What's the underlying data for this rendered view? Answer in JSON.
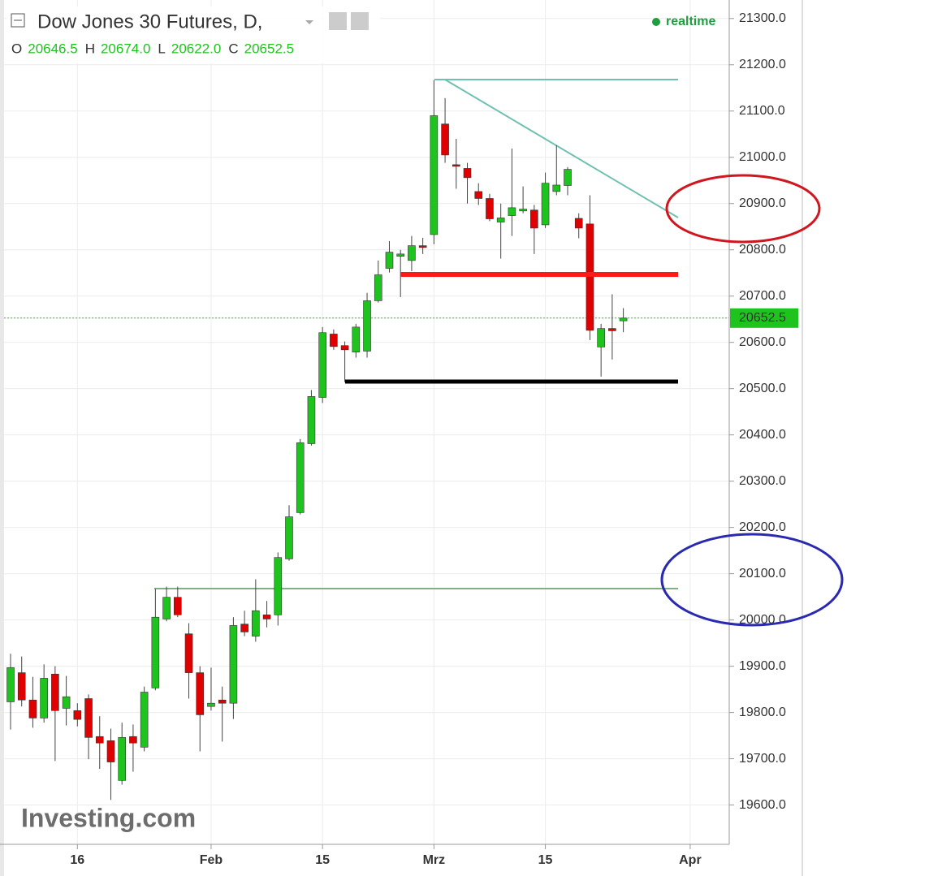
{
  "chart_data": {
    "type": "candlestick",
    "title": "Dow Jones 30 Futures, D,",
    "status": "realtime",
    "header": [
      {
        "label": "O",
        "text": "20646.5"
      },
      {
        "label": "H",
        "text": "20674.0"
      },
      {
        "label": "L",
        "text": "20622.0"
      },
      {
        "label": "C",
        "text": "20652.5"
      }
    ],
    "logo": "Investing.com",
    "categories": [
      null,
      null,
      null,
      null,
      null,
      null,
      "16",
      null,
      null,
      null,
      null,
      null,
      null,
      null,
      null,
      null,
      null,
      null,
      "Feb",
      null,
      null,
      null,
      null,
      null,
      null,
      null,
      null,
      null,
      "15",
      null,
      null,
      null,
      null,
      null,
      null,
      null,
      null,
      null,
      "Mrz",
      null,
      null,
      null,
      null,
      null,
      null,
      null,
      null,
      null,
      "15",
      null,
      null,
      null,
      null,
      null,
      null,
      null,
      null,
      null,
      null,
      null,
      null,
      "Apr"
    ],
    "open": [
      19823,
      19886,
      19827,
      19788,
      19883,
      19809,
      19804,
      19830,
      19748,
      19739,
      19653,
      19748,
      19725,
      19853,
      20002,
      20049,
      19970,
      19886,
      19813,
      19827,
      19820,
      19991,
      19965,
      20011,
      20011,
      20132,
      20232,
      20381,
      20481,
      20618,
      20593,
      20579,
      20581,
      20690,
      20760,
      20786,
      20777,
      20809,
      20833,
      21072,
      20984,
      20976,
      20926,
      20911,
      20860,
      20874,
      20884,
      20886,
      20854,
      20926,
      20939,
      20868,
      20856,
      20590,
      20630,
      20646.5,
      null,
      null,
      null,
      null,
      null,
      null
    ],
    "high": [
      19927,
      19921,
      19877,
      19904,
      19900,
      19879,
      19820,
      19839,
      19792,
      19765,
      19778,
      19774,
      19856,
      20067,
      20072,
      20072,
      19993,
      19900,
      19897,
      19856,
      20006,
      20020,
      20088,
      20041,
      20146,
      20248,
      20391,
      20497,
      20633,
      20628,
      20602,
      20640,
      20707,
      20777,
      20819,
      20800,
      20830,
      20826,
      21167,
      21128,
      21040,
      20988,
      20944,
      20921,
      20900,
      21019,
      20937,
      20897,
      20967,
      21026,
      20979,
      20879,
      20918,
      20640,
      20704,
      20674,
      null,
      null,
      null,
      null,
      null,
      null
    ],
    "low": [
      19763,
      19813,
      19767,
      19778,
      19695,
      19772,
      19770,
      19699,
      19678,
      19611,
      19644,
      19672,
      19716,
      19848,
      19997,
      20006,
      19830,
      19716,
      19804,
      19737,
      19786,
      19965,
      19953,
      19984,
      19988,
      20128,
      20228,
      20377,
      20469,
      20584,
      20514,
      20567,
      20567,
      20686,
      20751,
      20698,
      20754,
      20791,
      20812,
      20988,
      20932,
      20900,
      20897,
      20862,
      20781,
      20830,
      20879,
      20791,
      20847,
      20918,
      20918,
      20825,
      20605,
      20526,
      20563,
      20622,
      null,
      null,
      null,
      null,
      null,
      null
    ],
    "close": [
      19897,
      19827,
      19788,
      19874,
      19804,
      19834,
      19785,
      19746,
      19734,
      19693,
      19746,
      19734,
      19844,
      20006,
      20049,
      20011,
      19886,
      19795,
      19820,
      19820,
      19988,
      19974,
      20020,
      20002,
      20135,
      20223,
      20383,
      20483,
      20621,
      20591,
      20584,
      20633,
      20690,
      20746,
      20795,
      20791,
      20809,
      20805,
      21090,
      21005,
      20981,
      20956,
      20911,
      20867,
      20869,
      20891,
      20888,
      20847,
      20944,
      20940,
      20974,
      20847,
      20626,
      20630,
      20625,
      20652.5,
      null,
      null,
      null,
      null,
      null,
      null
    ],
    "up_color": "#1ec31e",
    "down_color": "#e00000",
    "ylim": [
      19515,
      21340
    ],
    "yticks": [
      {
        "value": 19600,
        "label": "19600.0"
      },
      {
        "value": 19700,
        "label": "19700.0"
      },
      {
        "value": 19800,
        "label": "19800.0"
      },
      {
        "value": 19900,
        "label": "19900.0"
      },
      {
        "value": 20000,
        "label": "20000.0"
      },
      {
        "value": 20100,
        "label": "20100.0"
      },
      {
        "value": 20200,
        "label": "20200.0"
      },
      {
        "value": 20300,
        "label": "20300.0"
      },
      {
        "value": 20400,
        "label": "20400.0"
      },
      {
        "value": 20500,
        "label": "20500.0"
      },
      {
        "value": 20600,
        "label": "20600.0"
      },
      {
        "value": 20700,
        "label": "20700.0"
      },
      {
        "value": 20800,
        "label": "20800.0"
      },
      {
        "value": 20900,
        "label": "20900.0"
      },
      {
        "value": 21000,
        "label": "21000.0"
      },
      {
        "value": 21100,
        "label": "21100.0"
      },
      {
        "value": 21200,
        "label": "21200.0"
      },
      {
        "value": 21300,
        "label": "21300.0"
      }
    ],
    "grid": true
  }
}
